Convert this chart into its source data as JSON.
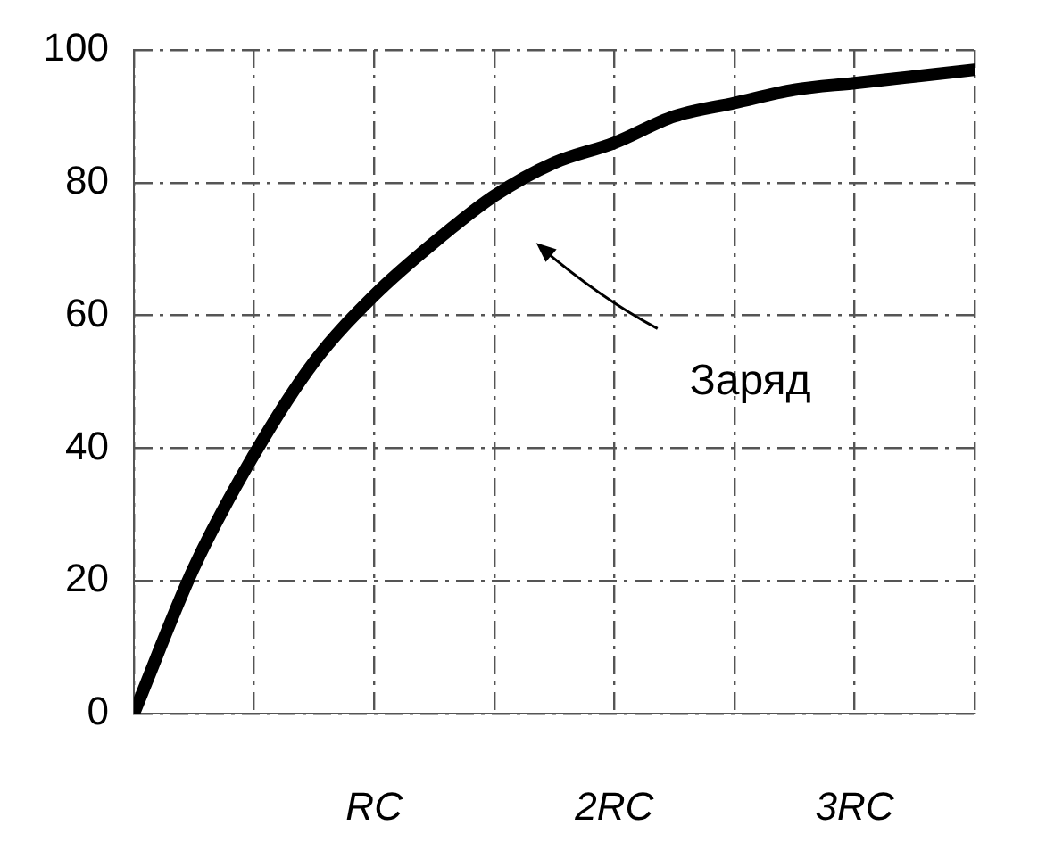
{
  "chart_data": {
    "type": "line",
    "x": [
      0,
      0.25,
      0.5,
      0.75,
      1,
      1.25,
      1.5,
      1.75,
      2,
      2.25,
      2.5,
      2.75,
      3,
      3.25,
      3.5
    ],
    "series": [
      {
        "color": "#000000",
        "values": [
          0,
          22,
          39,
          53,
          63,
          71,
          78,
          83,
          86,
          90,
          92,
          94,
          95,
          96,
          97
        ]
      }
    ],
    "xlim": [
      0,
      3.5
    ],
    "xticks": [
      {
        "value": 0,
        "label": null
      },
      {
        "value": 0.5,
        "label": null
      },
      {
        "value": 1,
        "label": "RC"
      },
      {
        "value": 1.5,
        "label": null
      },
      {
        "value": 2,
        "label": "2RC"
      },
      {
        "value": 2.5,
        "label": null
      },
      {
        "value": 3,
        "label": "3RC"
      },
      {
        "value": 3.5,
        "label": null
      }
    ],
    "ylim": [
      0,
      100
    ],
    "yticks": [
      0,
      20,
      40,
      60,
      80,
      100
    ],
    "grid": true,
    "legend": false,
    "marker": "none",
    "line_style": "solid",
    "annotations": [
      "Заряд"
    ]
  }
}
